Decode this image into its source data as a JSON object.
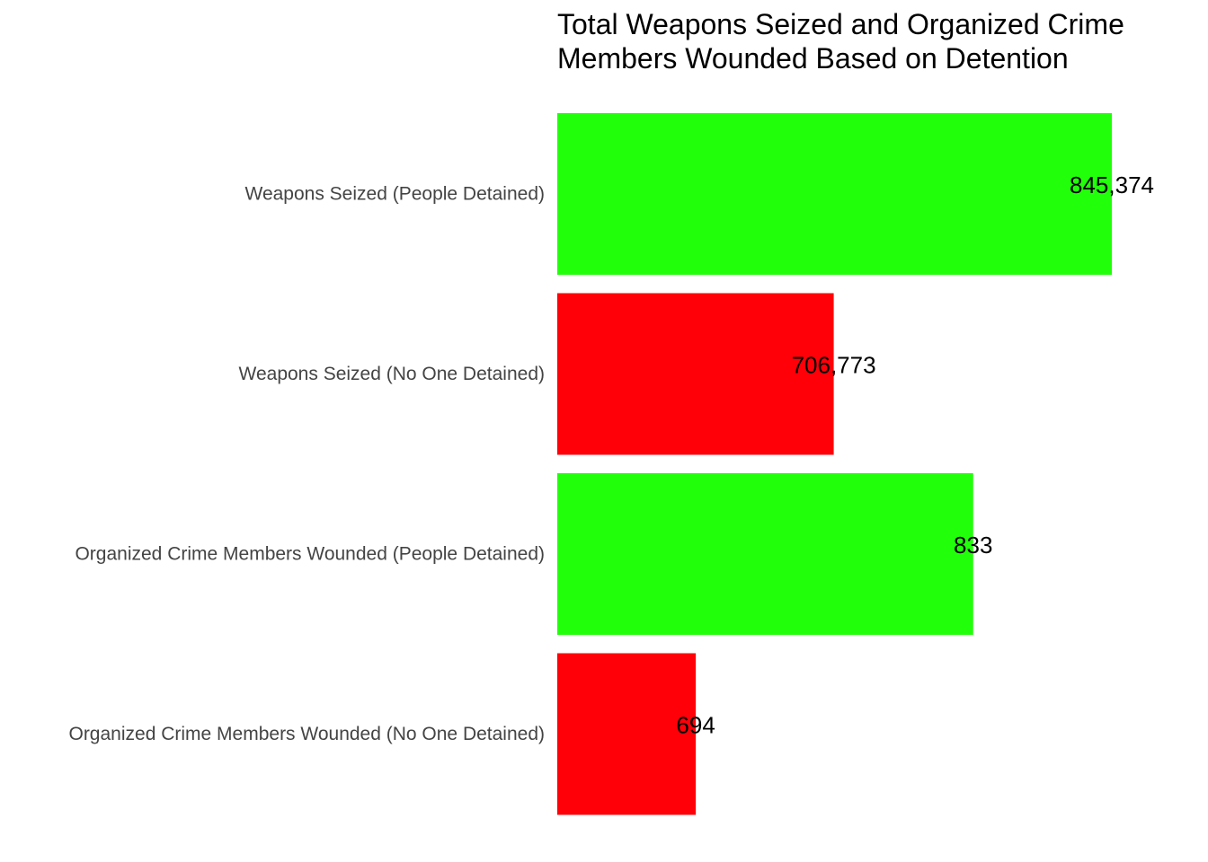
{
  "chart_data": {
    "type": "bar",
    "orientation": "horizontal",
    "title_lines": [
      "Total Weapons Seized and Organized Crime",
      "Members Wounded Based on Detention"
    ],
    "bars": [
      {
        "category": "Weapons Seized (People Detained)",
        "display_fraction": 1.0,
        "label": "845,374",
        "color": "#22ff0b"
      },
      {
        "category": "Weapons Seized (No One Detained)",
        "display_fraction": 0.4985,
        "label": "706,773",
        "color": "#ff0008"
      },
      {
        "category": "Organized Crime Members Wounded (People Detained)",
        "display_fraction": 0.75,
        "label": "833",
        "color": "#22ff0b"
      },
      {
        "category": "Organized Crime Members Wounded (No One Detained)",
        "display_fraction": 0.2498,
        "label": "694",
        "color": "#ff0008"
      }
    ],
    "xlabel": "",
    "ylabel": "",
    "grid": false,
    "legend": "none"
  }
}
